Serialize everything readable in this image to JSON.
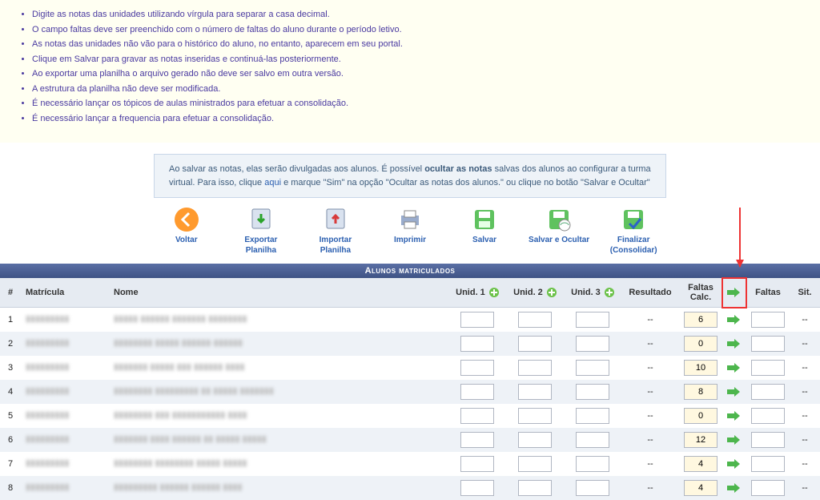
{
  "instructions": [
    "Digite as notas das unidades utilizando vírgula para separar a casa decimal.",
    "O campo faltas deve ser preenchido com o número de faltas do aluno durante o período letivo.",
    "As notas das unidades não vão para o histórico do aluno, no entanto, aparecem em seu portal.",
    "Clique em Salvar para gravar as notas inseridas e continuá-las posteriormente.",
    "Ao exportar uma planilha o arquivo gerado não deve ser salvo em outra versão.",
    "A estrutura da planilha não deve ser modificada.",
    "É necessário lançar os tópicos de aulas ministrados para efetuar a consolidação.",
    "É necessário lançar a frequencia para efetuar a consolidação."
  ],
  "info_box": {
    "pre": "Ao salvar as notas, elas serão divulgadas aos alunos. É possível ",
    "bold1": "ocultar as notas",
    "mid": " salvas dos alunos ao configurar a turma virtual. Para isso, clique ",
    "link": "aqui",
    "post": " e marque \"Sim\" na opção \"Ocultar as notas dos alunos.\" ou clique no botão \"Salvar e Ocultar\""
  },
  "toolbar": {
    "back": "Voltar",
    "export": "Exportar Planilha",
    "import": "Importar Planilha",
    "print": "Imprimir",
    "save": "Salvar",
    "save_hide": "Salvar e Ocultar",
    "finalize": "Finalizar (Consolidar)"
  },
  "section_title": "Alunos matriculados",
  "columns": {
    "idx": "#",
    "matricula": "Matrícula",
    "nome": "Nome",
    "unid1": "Unid. 1",
    "unid2": "Unid. 2",
    "unid3": "Unid. 3",
    "resultado": "Resultado",
    "faltas_calc": "Faltas Calc.",
    "faltas": "Faltas",
    "sit": "Sit."
  },
  "rows": [
    {
      "n": "1",
      "mat": "▮▮▮▮▮▮▮▮▮",
      "nome": "▮▮▮▮▮ ▮▮▮▮▮▮ ▮▮▮▮▮▮▮ ▮▮▮▮▮▮▮▮",
      "res": "--",
      "fc": "6",
      "sit": "--"
    },
    {
      "n": "2",
      "mat": "▮▮▮▮▮▮▮▮▮",
      "nome": "▮▮▮▮▮▮▮▮ ▮▮▮▮▮ ▮▮▮▮▮▮-▮▮▮▮▮▮",
      "res": "--",
      "fc": "0",
      "sit": "--"
    },
    {
      "n": "3",
      "mat": "▮▮▮▮▮▮▮▮▮",
      "nome": "▮▮▮▮▮▮▮ ▮▮▮▮▮ ▮▮▮ ▮▮▮▮▮▮ ▮▮▮▮",
      "res": "--",
      "fc": "10",
      "sit": "--"
    },
    {
      "n": "4",
      "mat": "▮▮▮▮▮▮▮▮▮",
      "nome": "▮▮▮▮▮▮▮▮ ▮▮▮▮▮▮▮▮▮ ▮▮ ▮▮▮▮▮ ▮▮▮▮▮▮▮",
      "res": "--",
      "fc": "8",
      "sit": "--"
    },
    {
      "n": "5",
      "mat": "▮▮▮▮▮▮▮▮▮",
      "nome": "▮▮▮▮▮▮▮▮ ▮▮▮ ▮▮▮▮▮▮▮▮▮▮▮ ▮▮▮▮",
      "res": "--",
      "fc": "0",
      "sit": "--"
    },
    {
      "n": "6",
      "mat": "▮▮▮▮▮▮▮▮▮",
      "nome": "▮▮▮▮▮▮▮ ▮▮▮▮ ▮▮▮▮▮▮ ▮▮ ▮▮▮▮▮ ▮▮▮▮▮",
      "res": "--",
      "fc": "12",
      "sit": "--"
    },
    {
      "n": "7",
      "mat": "▮▮▮▮▮▮▮▮▮",
      "nome": "▮▮▮▮▮▮▮▮ ▮▮▮▮▮▮▮▮ ▮▮▮▮▮ ▮▮▮▮▮",
      "res": "--",
      "fc": "4",
      "sit": "--"
    },
    {
      "n": "8",
      "mat": "▮▮▮▮▮▮▮▮▮",
      "nome": "▮▮▮▮▮▮▮▮▮ ▮▮▮▮▮▮ ▮▮▮▮▮▮ ▮▮▮▮",
      "res": "--",
      "fc": "4",
      "sit": "--"
    }
  ],
  "colors": {
    "instructions_text": "#4a3aa0",
    "header_bg": "#4a5f95",
    "link": "#2b5fb0"
  }
}
